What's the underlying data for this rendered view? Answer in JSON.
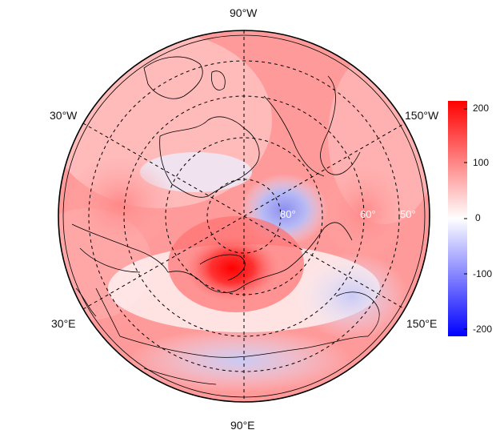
{
  "map": {
    "projection": "north-polar-stereographic",
    "meridian_labels": [
      "90°W",
      "150°W",
      "150°E",
      "90°E",
      "30°E",
      "30°W"
    ],
    "parallel_labels": [
      "80°",
      "60°",
      "50°"
    ],
    "background_color": "#ffffff",
    "coastline_color": "#000000",
    "graticule_style": "dashed"
  },
  "colorbar": {
    "ticks": [
      "200",
      "100",
      "0",
      "-100",
      "-200"
    ],
    "range": [
      -220,
      220
    ],
    "colors": {
      "max": "#ff0000",
      "mid": "#ffffff",
      "min": "#0000ff"
    }
  }
}
